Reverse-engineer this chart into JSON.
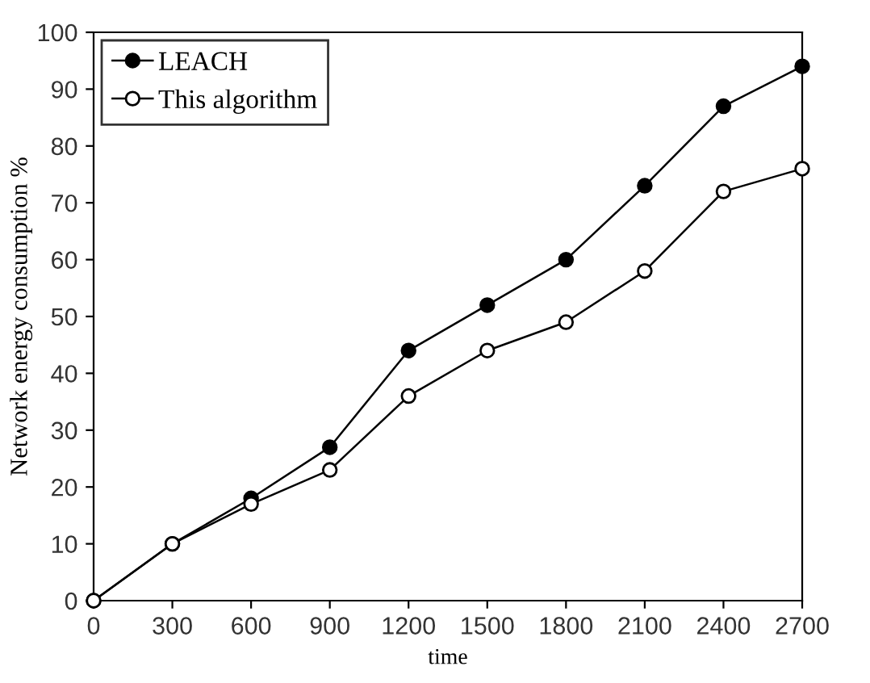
{
  "chart_data": {
    "type": "line",
    "xlabel": "time",
    "ylabel": "Network energy consumption %",
    "x": [
      0,
      300,
      600,
      900,
      1200,
      1500,
      1800,
      2100,
      2400,
      2700
    ],
    "series": [
      {
        "name": "LEACH",
        "color": "#000000",
        "values": [
          0,
          10,
          18,
          27,
          44,
          52,
          60,
          73,
          87,
          94
        ]
      },
      {
        "name": "This algorithm",
        "color": "#000000",
        "values": [
          0,
          10,
          17,
          23,
          36,
          44,
          49,
          58,
          72,
          76
        ]
      }
    ],
    "xlim": [
      0,
      2700
    ],
    "xticks": [
      0,
      300,
      600,
      900,
      1200,
      1500,
      1800,
      2100,
      2400,
      2700
    ],
    "ylim": [
      0,
      100
    ],
    "yticks": [
      0,
      10,
      20,
      30,
      40,
      50,
      60,
      70,
      80,
      90,
      100
    ],
    "grid": false,
    "legend": "top left",
    "marker": "circle",
    "line_style": "solid"
  }
}
